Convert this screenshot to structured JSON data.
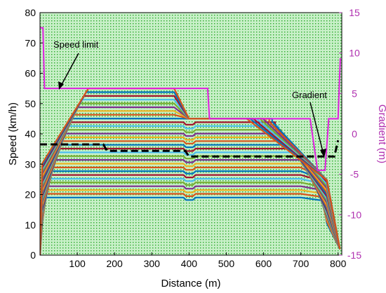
{
  "chart_data": {
    "type": "line",
    "xlabel": "Distance (m)",
    "ylabel": "Speed (km/h)",
    "y2label": "Gradient (m)",
    "xlim": [
      0,
      810
    ],
    "ylim": [
      0,
      80
    ],
    "y2lim": [
      -15,
      15
    ],
    "xticks": [
      100,
      200,
      300,
      400,
      500,
      600,
      700,
      800
    ],
    "yticks": [
      0,
      10,
      20,
      30,
      40,
      50,
      60,
      70,
      80
    ],
    "y2ticks": [
      -15,
      -10,
      -5,
      0,
      5,
      10,
      15
    ],
    "grid": "dense dotted green background",
    "annotations": [
      {
        "text": "Speed limit"
      },
      {
        "text": "Gradient"
      }
    ],
    "speed_limit": {
      "color": "#e020e0",
      "x": [
        0,
        8,
        12,
        450,
        455,
        725,
        745,
        765,
        775,
        800,
        806
      ],
      "y": [
        75,
        75,
        55,
        55,
        45,
        45,
        28,
        28,
        45,
        45,
        65
      ]
    },
    "gradient": {
      "color": "#000000",
      "axis": "right",
      "x": [
        0,
        170,
        180,
        390,
        400,
        790,
        800
      ],
      "y": [
        -1.3,
        -1.3,
        -2.1,
        -2.1,
        -2.8,
        -2.8,
        -0.8
      ]
    },
    "speed_profiles": {
      "count": 30,
      "colors": [
        "#0072bd",
        "#d95319",
        "#edb120",
        "#7e2f8e",
        "#77ac30",
        "#4dbeee",
        "#a2142f"
      ],
      "min_cruise": 19,
      "max_cruise": 55,
      "cruise_cap_after_400": 45,
      "accel_end_x": 130,
      "stop_x": 805
    }
  }
}
